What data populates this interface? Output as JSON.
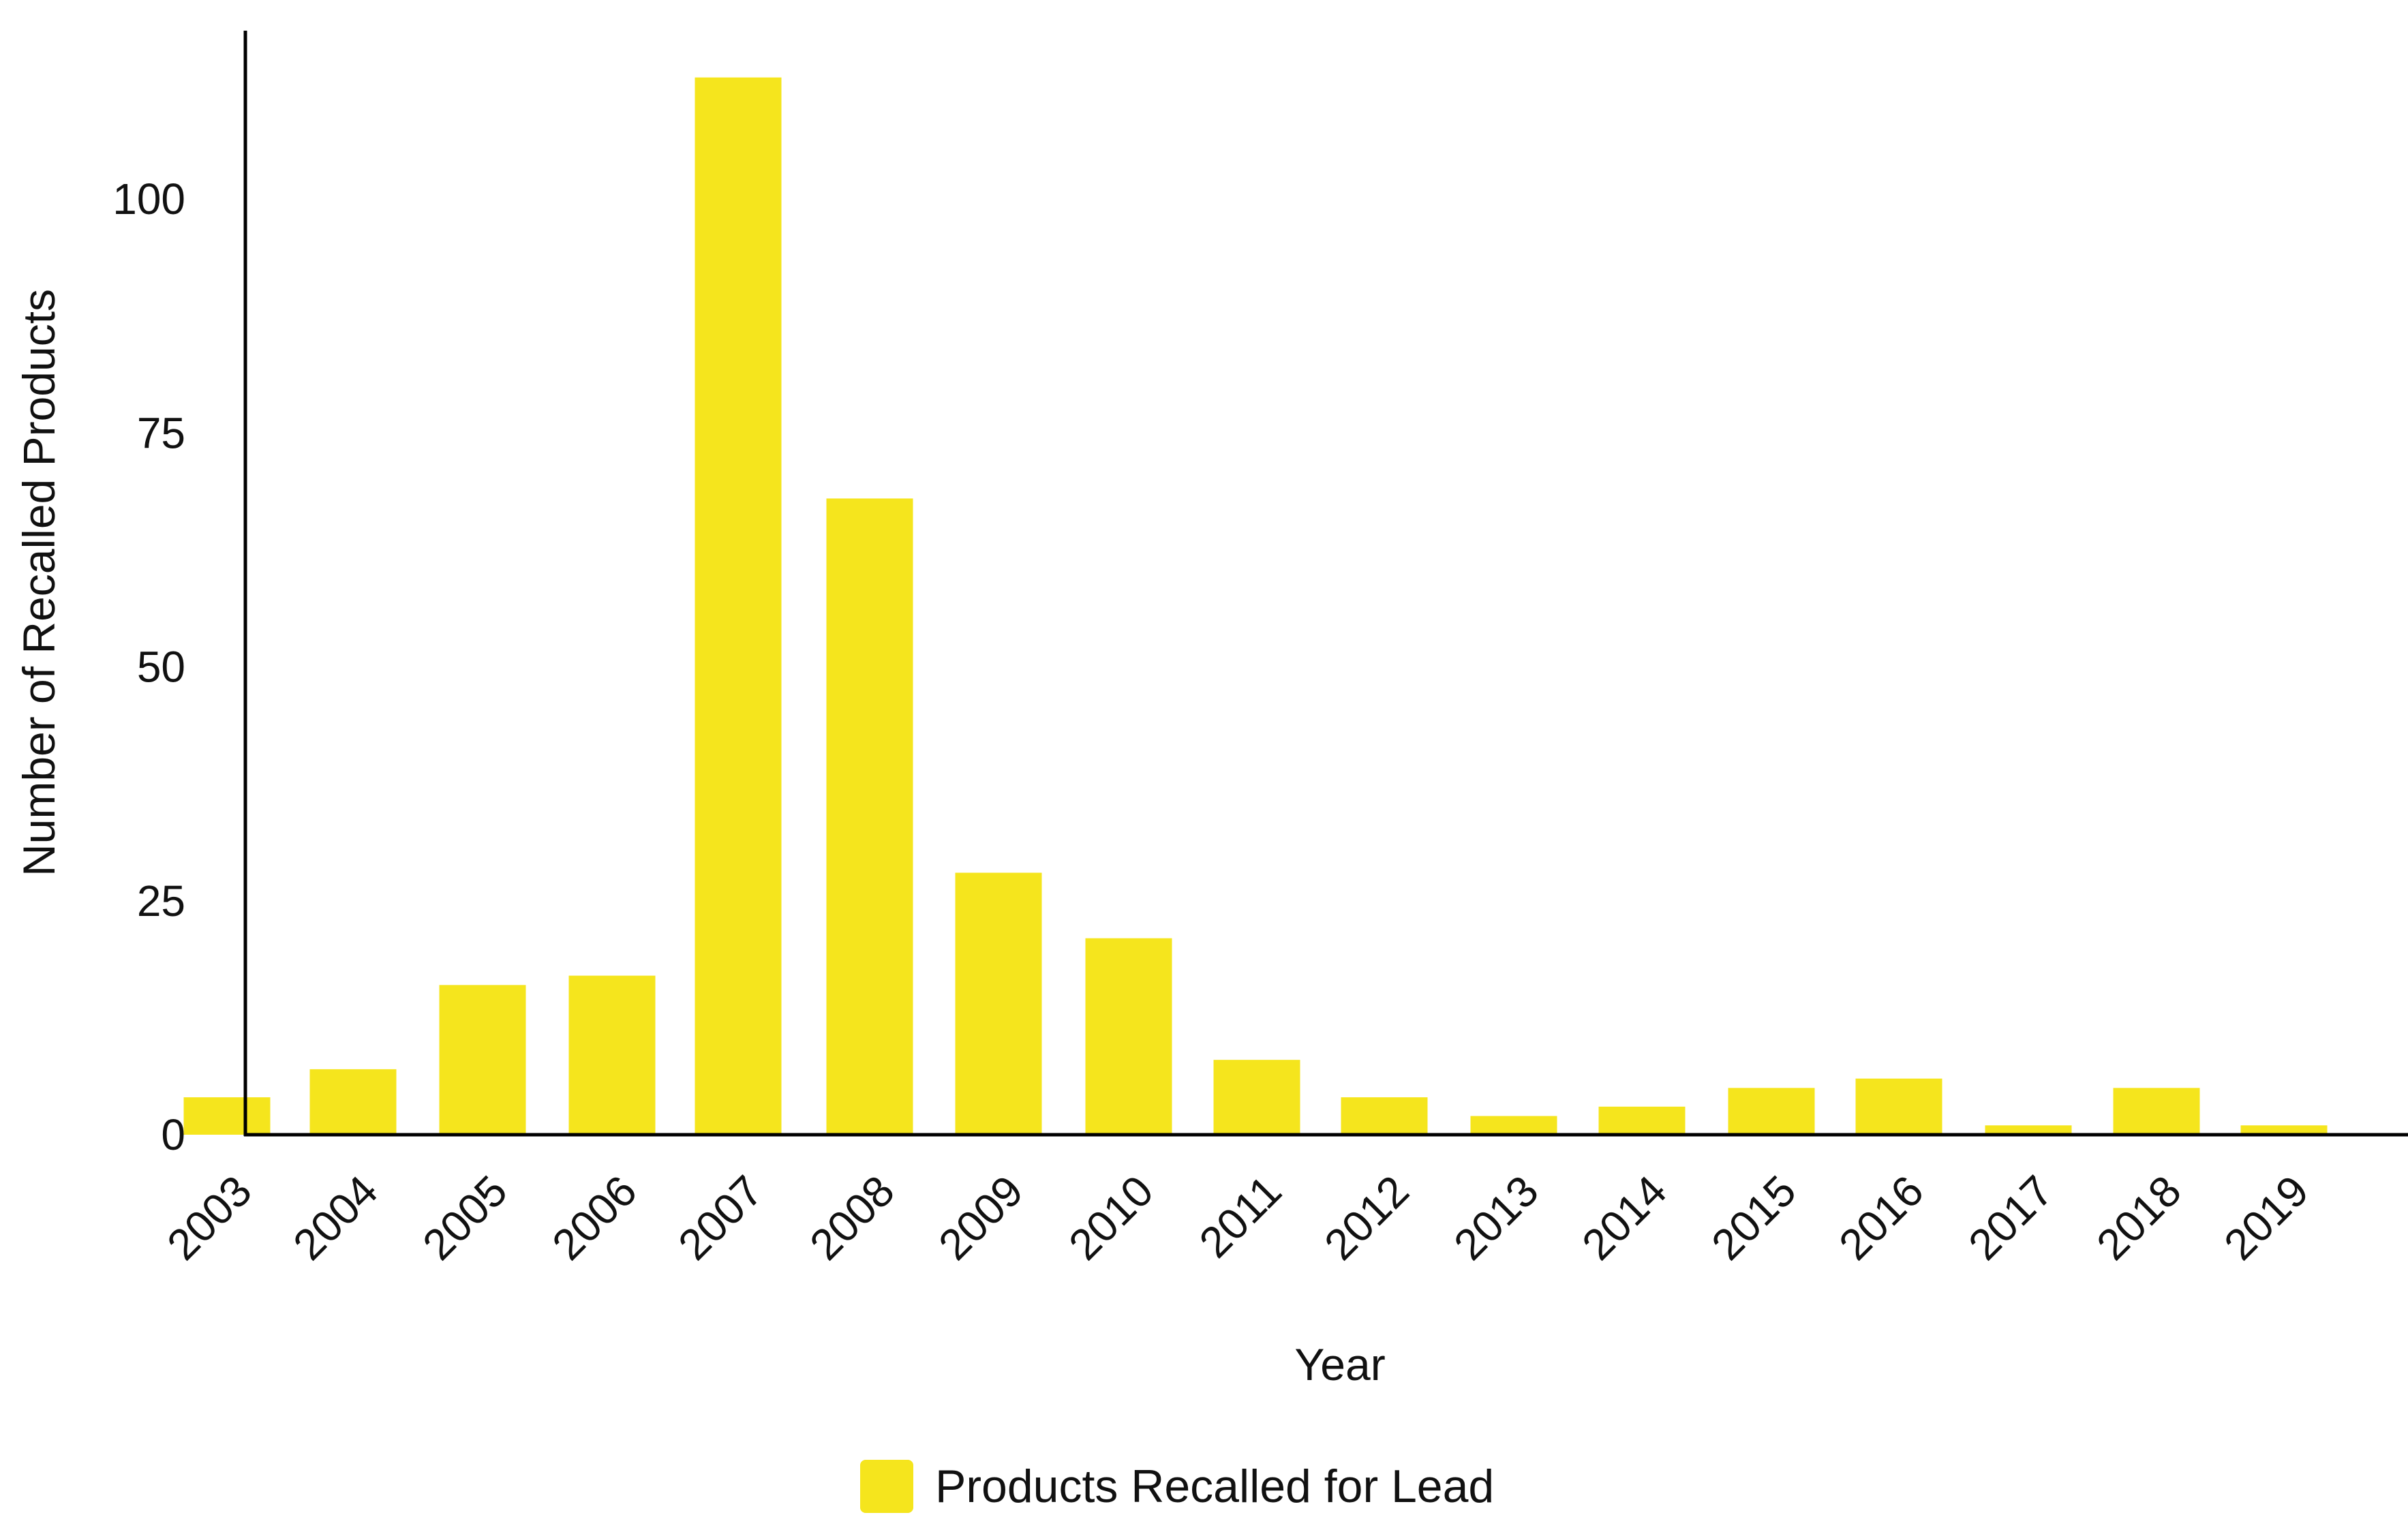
{
  "chart_data": {
    "type": "bar",
    "categories": [
      "2003",
      "2004",
      "2005",
      "2006",
      "2007",
      "2008",
      "2009",
      "2010",
      "2011",
      "2012",
      "2013",
      "2014",
      "2015",
      "2016",
      "2017",
      "2018",
      "2019"
    ],
    "series": [
      {
        "name": "Products Recalled for Lead",
        "values": [
          4,
          7,
          16,
          17,
          113,
          68,
          28,
          21,
          8,
          4,
          2,
          3,
          5,
          6,
          1,
          5,
          1
        ],
        "color": "#f5e51d"
      }
    ],
    "title": "",
    "xlabel": "Year",
    "ylabel": "Number of Recalled Products",
    "ylim": [
      0,
      118
    ],
    "yticks": [
      0,
      25,
      50,
      75,
      100
    ],
    "grid": false,
    "legend_position": "bottom-center"
  }
}
